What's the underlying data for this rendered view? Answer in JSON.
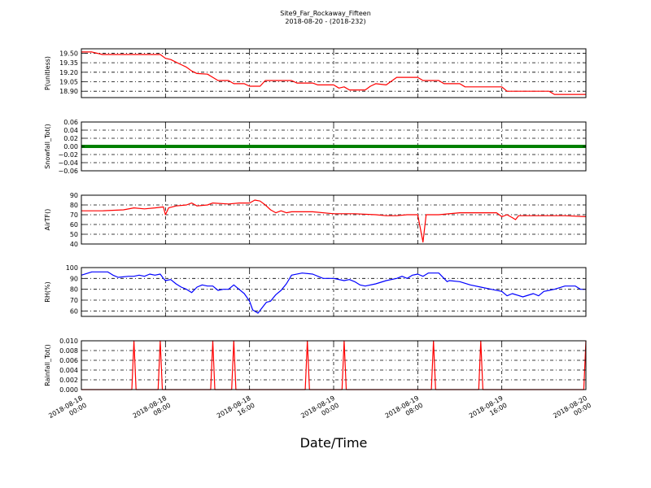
{
  "chart_data": {
    "type": "line",
    "title": "Site9_Far_Rockaway_Fifteen",
    "subtitle": "2018-08-20 - (2018-232)",
    "xlabel": "Date/Time",
    "x_range": [
      "2018-08-18 00:00",
      "2018-08-20 00:00"
    ],
    "x_tick_labels": [
      [
        "2018-08-18",
        "00:00"
      ],
      [
        "2018-08-18",
        "08:00"
      ],
      [
        "2018-08-18",
        "16:00"
      ],
      [
        "2018-08-19",
        "00:00"
      ],
      [
        "2018-08-19",
        "08:00"
      ],
      [
        "2018-08-19",
        "16:00"
      ],
      [
        "2018-08-20",
        "00:00"
      ]
    ],
    "grid": true,
    "panels": [
      {
        "ylabel": "P(unitless)",
        "ylim": [
          18.8,
          19.57
        ],
        "yticks": [
          "19.50",
          "19.35",
          "19.20",
          "19.05",
          "18.90"
        ],
        "ytick_values": [
          19.5,
          19.35,
          19.2,
          19.05,
          18.9
        ],
        "color": "#ff0000",
        "points": [
          [
            0.0,
            19.52
          ],
          [
            1.0,
            19.52
          ],
          [
            2.0,
            19.48
          ],
          [
            4.0,
            19.48
          ],
          [
            6.0,
            19.48
          ],
          [
            7.5,
            19.48
          ],
          [
            8.0,
            19.42
          ],
          [
            8.5,
            19.4
          ],
          [
            9.0,
            19.36
          ],
          [
            9.5,
            19.32
          ],
          [
            10.0,
            19.28
          ],
          [
            10.5,
            19.22
          ],
          [
            11.0,
            19.18
          ],
          [
            12.0,
            19.17
          ],
          [
            12.5,
            19.12
          ],
          [
            13.0,
            19.07
          ],
          [
            14.0,
            19.07
          ],
          [
            14.5,
            19.02
          ],
          [
            15.5,
            19.02
          ],
          [
            16.0,
            18.98
          ],
          [
            17.0,
            18.98
          ],
          [
            17.5,
            19.07
          ],
          [
            20.0,
            19.07
          ],
          [
            20.5,
            19.03
          ],
          [
            22.0,
            19.03
          ],
          [
            22.5,
            19.0
          ],
          [
            24.0,
            19.0
          ],
          [
            24.5,
            18.95
          ],
          [
            25.0,
            18.97
          ],
          [
            25.5,
            18.92
          ],
          [
            27.0,
            18.92
          ],
          [
            27.5,
            18.98
          ],
          [
            28.0,
            19.02
          ],
          [
            29.0,
            19.0
          ],
          [
            30.0,
            19.12
          ],
          [
            32.0,
            19.12
          ],
          [
            32.5,
            19.07
          ],
          [
            34.0,
            19.07
          ],
          [
            34.5,
            19.02
          ],
          [
            36.0,
            19.02
          ],
          [
            36.5,
            18.97
          ],
          [
            40.0,
            18.97
          ],
          [
            40.5,
            18.9
          ],
          [
            44.5,
            18.9
          ],
          [
            45.0,
            18.85
          ],
          [
            48.0,
            18.85
          ]
        ]
      },
      {
        "ylabel": "Snowfall_Tot()",
        "ylim": [
          -0.06,
          0.06
        ],
        "yticks": [
          "0.06",
          "0.04",
          "0.02",
          "0.00",
          "−0.02",
          "−0.04",
          "−0.06"
        ],
        "ytick_values": [
          0.06,
          0.04,
          0.02,
          0.0,
          -0.02,
          -0.04,
          -0.06
        ],
        "color": "#008000",
        "points": [
          [
            0.0,
            0.0
          ],
          [
            48.0,
            0.0
          ]
        ]
      },
      {
        "ylabel": "AirTF()",
        "ylim": [
          40,
          90
        ],
        "yticks": [
          "90",
          "80",
          "70",
          "60",
          "50",
          "40"
        ],
        "ytick_values": [
          90,
          80,
          70,
          60,
          50,
          40
        ],
        "color": "#ff0000",
        "points": [
          [
            0.0,
            74
          ],
          [
            2.0,
            74
          ],
          [
            4.0,
            75
          ],
          [
            5.0,
            77
          ],
          [
            6.0,
            76
          ],
          [
            7.0,
            77
          ],
          [
            7.8,
            78
          ],
          [
            8.0,
            70
          ],
          [
            8.3,
            77
          ],
          [
            9.0,
            79
          ],
          [
            10.0,
            80
          ],
          [
            10.5,
            82
          ],
          [
            11.0,
            79
          ],
          [
            12.0,
            80
          ],
          [
            12.5,
            82
          ],
          [
            14.0,
            81
          ],
          [
            15.0,
            82
          ],
          [
            16.0,
            82
          ],
          [
            16.5,
            85
          ],
          [
            17.0,
            84
          ],
          [
            17.5,
            80
          ],
          [
            18.0,
            75
          ],
          [
            18.5,
            72
          ],
          [
            19.0,
            74
          ],
          [
            19.5,
            72
          ],
          [
            20.0,
            73
          ],
          [
            22.0,
            73
          ],
          [
            24.0,
            71
          ],
          [
            26.0,
            71
          ],
          [
            28.0,
            70
          ],
          [
            29.0,
            69
          ],
          [
            30.0,
            69
          ],
          [
            31.0,
            70
          ],
          [
            32.0,
            70
          ],
          [
            32.5,
            42
          ],
          [
            32.8,
            70
          ],
          [
            34.0,
            70
          ],
          [
            36.0,
            72
          ],
          [
            38.0,
            72
          ],
          [
            39.5,
            72
          ],
          [
            40.0,
            68
          ],
          [
            40.5,
            70
          ],
          [
            41.0,
            67
          ],
          [
            41.3,
            65
          ],
          [
            41.6,
            69
          ],
          [
            44.0,
            69
          ],
          [
            46.0,
            69
          ],
          [
            48.0,
            68
          ]
        ]
      },
      {
        "ylabel": "RH(%)",
        "ylim": [
          55,
          100
        ],
        "yticks": [
          "100",
          "90",
          "80",
          "70",
          "60"
        ],
        "ytick_values": [
          100,
          90,
          80,
          70,
          60
        ],
        "color": "#0000ff",
        "points": [
          [
            0.0,
            93
          ],
          [
            1.0,
            96
          ],
          [
            2.5,
            96
          ],
          [
            3.0,
            93
          ],
          [
            3.5,
            91
          ],
          [
            4.5,
            92
          ],
          [
            5.0,
            92
          ],
          [
            5.5,
            93
          ],
          [
            6.0,
            92
          ],
          [
            6.5,
            94
          ],
          [
            7.0,
            93
          ],
          [
            7.5,
            94
          ],
          [
            7.8,
            90
          ],
          [
            8.0,
            88
          ],
          [
            8.5,
            89
          ],
          [
            9.0,
            85
          ],
          [
            9.5,
            82
          ],
          [
            10.0,
            80
          ],
          [
            10.5,
            77
          ],
          [
            11.0,
            82
          ],
          [
            11.5,
            84
          ],
          [
            12.0,
            83
          ],
          [
            12.5,
            83
          ],
          [
            13.0,
            79
          ],
          [
            13.5,
            80
          ],
          [
            14.0,
            80
          ],
          [
            14.5,
            84
          ],
          [
            15.0,
            80
          ],
          [
            15.5,
            76
          ],
          [
            16.0,
            69
          ],
          [
            16.3,
            61
          ],
          [
            16.8,
            58
          ],
          [
            17.2,
            63
          ],
          [
            17.6,
            68
          ],
          [
            18.0,
            69
          ],
          [
            18.5,
            75
          ],
          [
            19.0,
            79
          ],
          [
            19.5,
            85
          ],
          [
            20.0,
            93
          ],
          [
            21.0,
            95
          ],
          [
            22.0,
            94
          ],
          [
            23.0,
            90
          ],
          [
            24.0,
            90
          ],
          [
            25.0,
            88
          ],
          [
            25.5,
            89
          ],
          [
            26.0,
            87
          ],
          [
            26.5,
            84
          ],
          [
            27.0,
            83
          ],
          [
            28.0,
            85
          ],
          [
            29.0,
            88
          ],
          [
            30.0,
            90
          ],
          [
            30.5,
            92
          ],
          [
            31.0,
            90
          ],
          [
            31.5,
            93
          ],
          [
            32.0,
            94
          ],
          [
            32.5,
            92
          ],
          [
            33.0,
            95
          ],
          [
            34.0,
            95
          ],
          [
            34.5,
            90
          ],
          [
            34.8,
            87
          ],
          [
            35.0,
            88
          ],
          [
            36.0,
            87
          ],
          [
            37.0,
            84
          ],
          [
            38.0,
            82
          ],
          [
            39.0,
            80
          ],
          [
            40.0,
            78
          ],
          [
            40.5,
            74
          ],
          [
            41.0,
            76
          ],
          [
            42.0,
            73
          ],
          [
            43.0,
            76
          ],
          [
            43.5,
            74
          ],
          [
            44.0,
            78
          ],
          [
            44.5,
            79
          ],
          [
            45.0,
            80
          ],
          [
            46.0,
            83
          ],
          [
            47.0,
            83
          ],
          [
            47.5,
            80
          ],
          [
            48.0,
            80
          ]
        ]
      },
      {
        "ylabel": "Rainfall_Tot()",
        "ylim": [
          0.0,
          0.01
        ],
        "yticks": [
          "0.010",
          "0.008",
          "0.006",
          "0.004",
          "0.002",
          "0.000"
        ],
        "ytick_values": [
          0.01,
          0.008,
          0.006,
          0.004,
          0.002,
          0.0
        ],
        "color": "#ff0000",
        "points": [
          [
            0.0,
            0.0
          ],
          [
            4.8,
            0.0
          ],
          [
            5.0,
            0.01
          ],
          [
            5.2,
            0.0
          ],
          [
            7.3,
            0.0
          ],
          [
            7.5,
            0.01
          ],
          [
            7.7,
            0.0
          ],
          [
            12.3,
            0.0
          ],
          [
            12.5,
            0.01
          ],
          [
            12.7,
            0.0
          ],
          [
            14.3,
            0.0
          ],
          [
            14.5,
            0.01
          ],
          [
            14.7,
            0.0
          ],
          [
            21.3,
            0.0
          ],
          [
            21.5,
            0.01
          ],
          [
            21.7,
            0.0
          ],
          [
            24.8,
            0.0
          ],
          [
            25.0,
            0.01
          ],
          [
            25.2,
            0.0
          ],
          [
            33.3,
            0.0
          ],
          [
            33.5,
            0.01
          ],
          [
            33.7,
            0.0
          ],
          [
            37.8,
            0.0
          ],
          [
            38.0,
            0.01
          ],
          [
            38.2,
            0.0
          ],
          [
            47.8,
            0.0
          ],
          [
            48.0,
            0.01
          ]
        ]
      }
    ]
  }
}
